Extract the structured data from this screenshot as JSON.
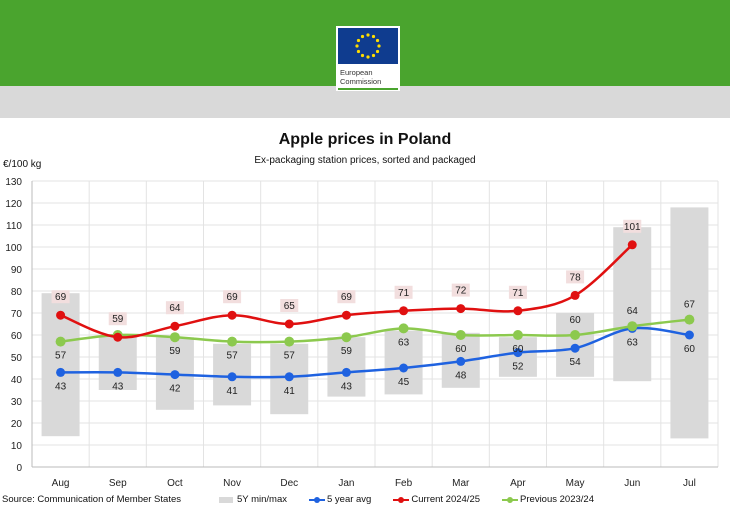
{
  "header": {
    "logo_text_line1": "European",
    "logo_text_line2": "Commission"
  },
  "colors": {
    "band": "#d9d9d9",
    "avg": "#1f62e0",
    "current": "#e01010",
    "previous": "#8cc94e",
    "header_green": "#4aa42e"
  },
  "chart_data": {
    "type": "line",
    "title": "Apple prices in Poland",
    "subtitle": "Ex-packaging station prices, sorted and packaged",
    "ylabel": "€/100 kg",
    "ylim": [
      0,
      130
    ],
    "yticks": [
      0,
      10,
      20,
      30,
      40,
      50,
      60,
      70,
      80,
      90,
      100,
      110,
      120,
      130
    ],
    "grid": true,
    "legend_position": "bottom",
    "categories": [
      "Aug",
      "Sep",
      "Oct",
      "Nov",
      "Dec",
      "Jan",
      "Feb",
      "Mar",
      "Apr",
      "May",
      "Jun",
      "Jul"
    ],
    "band": {
      "name": "5Y min/max",
      "min": [
        14,
        35,
        26,
        28,
        24,
        32,
        33,
        36,
        41,
        41,
        39,
        13
      ],
      "max": [
        79,
        60,
        59,
        56,
        56,
        59,
        62,
        61,
        59,
        70,
        109,
        118
      ]
    },
    "series": [
      {
        "name": "5 year avg",
        "key": "avg",
        "values": [
          43,
          43,
          42,
          41,
          41,
          43,
          45,
          48,
          52,
          54,
          63,
          60
        ],
        "labels": [
          43,
          43,
          42,
          41,
          41,
          43,
          45,
          48,
          52,
          54,
          63,
          60
        ]
      },
      {
        "name": "Current 2024/25",
        "key": "current",
        "values": [
          69,
          59,
          64,
          69,
          65,
          69,
          71,
          72,
          71,
          78,
          101,
          null
        ],
        "labels": [
          69,
          59,
          64,
          69,
          65,
          69,
          71,
          72,
          71,
          78,
          101,
          null
        ]
      },
      {
        "name": "Previous 2023/24",
        "key": "previous",
        "values": [
          57,
          60,
          59,
          57,
          57,
          59,
          63,
          60,
          60,
          60,
          64,
          67
        ],
        "labels": [
          57,
          null,
          59,
          57,
          57,
          59,
          63,
          60,
          60,
          60,
          64,
          67
        ]
      }
    ]
  },
  "source": "Source: Communication of Member States"
}
